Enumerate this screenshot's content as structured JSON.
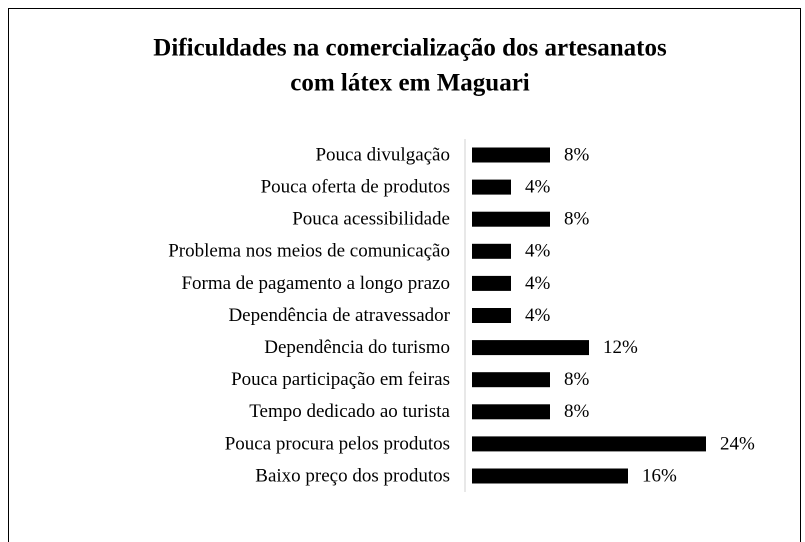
{
  "chart_data": {
    "type": "barh",
    "title": [
      "Dificuldades na comercialização dos artesanatos",
      "com látex em Maguari"
    ],
    "categories": [
      "Pouca divulgação",
      "Pouca oferta de produtos",
      "Pouca acessibilidade",
      "Problema nos meios de comunicação",
      "Forma de pagamento a longo prazo",
      "Dependência de atravessador",
      "Dependência do turismo",
      "Pouca participação em feiras",
      "Tempo dedicado ao turista",
      "Pouca procura pelos produtos",
      "Baixo preço dos produtos"
    ],
    "values": [
      8,
      4,
      8,
      4,
      4,
      4,
      12,
      8,
      8,
      24,
      16
    ],
    "value_labels": [
      "8%",
      "4%",
      "8%",
      "4%",
      "4%",
      "4%",
      "12%",
      "8%",
      "8%",
      "24%",
      "16%"
    ],
    "color": "#000000"
  }
}
